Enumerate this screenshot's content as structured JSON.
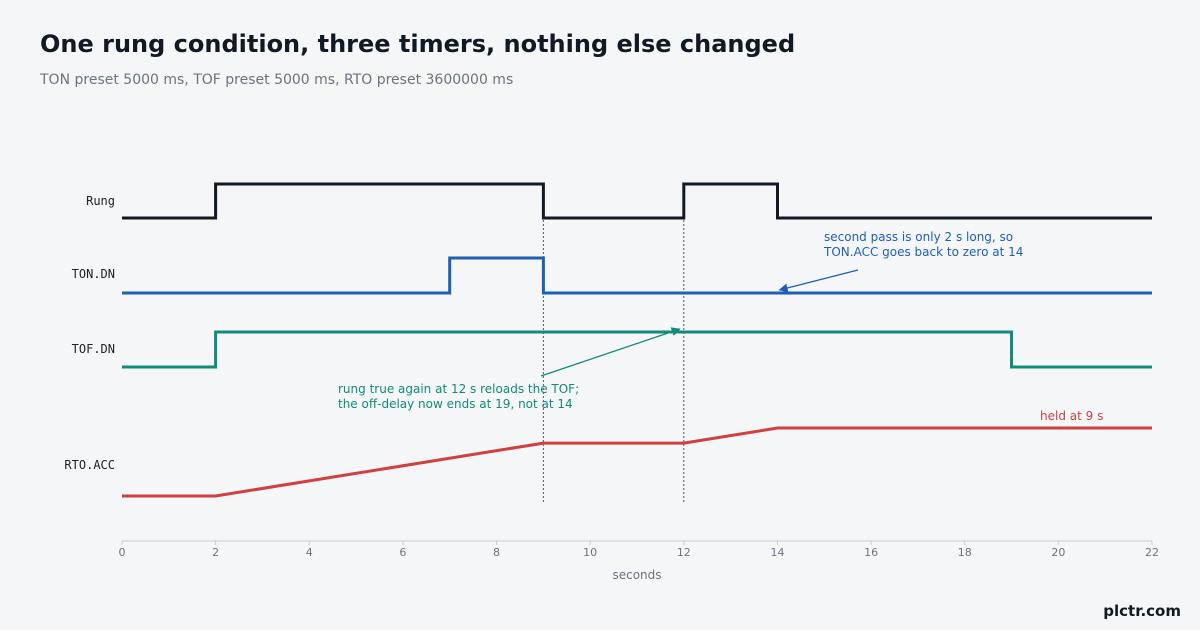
{
  "header": {
    "title": "One rung condition, three timers, nothing else changed",
    "subtitle": "TON preset 5000 ms, TOF preset 5000 ms, RTO preset 3600000 ms"
  },
  "brand": "plctr.com",
  "colors": {
    "rung": "#111a24",
    "ton": "#1f5fb4",
    "tof": "#138a7a",
    "rto": "#d04040",
    "axis": "#c8ccd2",
    "marker": "#555555"
  },
  "chart_data": {
    "type": "line",
    "xlabel": "seconds",
    "xlim": [
      0,
      22
    ],
    "xticks": [
      0,
      2,
      4,
      6,
      8,
      10,
      12,
      14,
      16,
      18,
      20,
      22
    ],
    "grid": false,
    "series": [
      {
        "name": "Rung",
        "kind": "digital",
        "points": [
          [
            0,
            0
          ],
          [
            2,
            0
          ],
          [
            2,
            1
          ],
          [
            9,
            1
          ],
          [
            9,
            0
          ],
          [
            12,
            0
          ],
          [
            12,
            1
          ],
          [
            14,
            1
          ],
          [
            14,
            0
          ],
          [
            22,
            0
          ]
        ]
      },
      {
        "name": "TON.DN",
        "kind": "digital",
        "points": [
          [
            0,
            0
          ],
          [
            7,
            0
          ],
          [
            7,
            1
          ],
          [
            9,
            1
          ],
          [
            9,
            0
          ],
          [
            22,
            0
          ]
        ]
      },
      {
        "name": "TOF.DN",
        "kind": "digital",
        "points": [
          [
            0,
            0
          ],
          [
            2,
            0
          ],
          [
            2,
            1
          ],
          [
            19,
            1
          ],
          [
            19,
            0
          ],
          [
            22,
            0
          ]
        ]
      },
      {
        "name": "RTO.ACC",
        "kind": "analog",
        "unit": "s",
        "ylim": [
          0,
          9
        ],
        "points": [
          [
            0,
            0
          ],
          [
            2,
            0
          ],
          [
            9,
            7
          ],
          [
            12,
            7
          ],
          [
            14,
            9
          ],
          [
            22,
            9
          ]
        ]
      }
    ],
    "markers_x": [
      9,
      12
    ],
    "annotations": [
      {
        "id": "ton",
        "lines": [
          "second pass is only 2 s long, so",
          "TON.ACC goes back to zero at 14"
        ],
        "target": [
          14,
          "TON.DN",
          0
        ]
      },
      {
        "id": "tof",
        "lines": [
          "rung true again at 12 s reloads the TOF;",
          "the off-delay now ends at 19, not at 14"
        ],
        "target": [
          12,
          "TOF.DN",
          1
        ]
      },
      {
        "id": "rto",
        "lines": [
          "held at 9 s"
        ]
      }
    ]
  }
}
